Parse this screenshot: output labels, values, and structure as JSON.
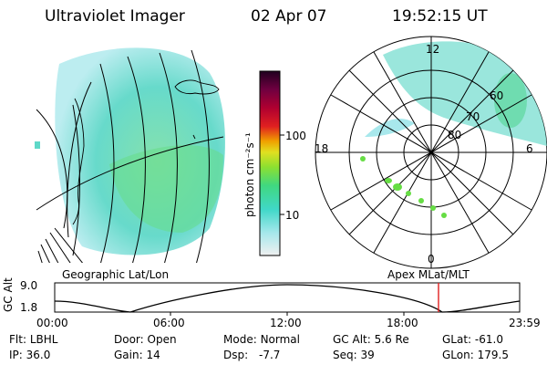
{
  "header": {
    "title": "Ultraviolet Imager",
    "date": "02 Apr 07",
    "time": "19:52:15 UT"
  },
  "colorbar": {
    "unit_label": "photon cm⁻²s⁻¹",
    "ticks": [
      "100",
      "10"
    ]
  },
  "left_panel": {
    "caption": "Geographic Lat/Lon"
  },
  "right_panel": {
    "caption": "Apex MLat/MLT",
    "mlt_labels": [
      "12",
      "18",
      "6",
      "0"
    ],
    "lat_labels": [
      "60",
      "70",
      "80"
    ]
  },
  "altitude_plot": {
    "ylabel": "GC Alt",
    "yticks": [
      "9.0",
      "1.8"
    ],
    "xticks": [
      "00:00",
      "06:00",
      "12:00",
      "18:00",
      "23:59"
    ],
    "marker_color": "#e02020"
  },
  "info": {
    "filter_label": "Flt:",
    "filter_value": "LBHL",
    "door_label": "Door:",
    "door_value": "Open",
    "mode_label": "Mode:",
    "mode_value": "Normal",
    "gcalt_label": "GC Alt:",
    "gcalt_value": "5.6 Re",
    "glat_label": "GLat:",
    "glat_value": "-61.0",
    "ip_label": "IP:",
    "ip_value": "36.0",
    "gain_label": "Gain:",
    "gain_value": "14",
    "dsp_label": "Dsp:",
    "dsp_value": "-7.7",
    "seq_label": "Seq:",
    "seq_value": "39",
    "glon_label": "GLon:",
    "glon_value": "179.5"
  }
}
